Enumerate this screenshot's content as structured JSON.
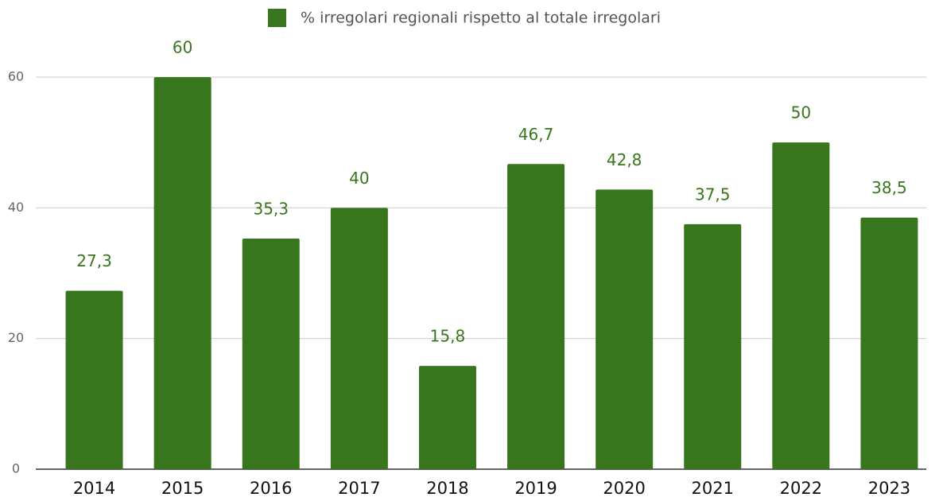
{
  "chart_data": {
    "type": "bar",
    "categories": [
      "2014",
      "2015",
      "2016",
      "2017",
      "2018",
      "2019",
      "2020",
      "2021",
      "2022",
      "2023"
    ],
    "series": [
      {
        "name": "% irregolari regionali rispetto al totale irregolari",
        "color": "#38761d",
        "values": [
          27.3,
          60,
          35.3,
          40,
          15.8,
          46.7,
          42.8,
          37.5,
          50,
          38.5
        ],
        "value_labels": [
          "27,3",
          "60",
          "35,3",
          "40",
          "15,8",
          "46,7",
          "42,8",
          "37,5",
          "50",
          "38,5"
        ]
      }
    ],
    "ylim": [
      0,
      60
    ],
    "yticks": [
      0,
      20,
      40,
      60
    ],
    "grid": true,
    "legend": "top"
  }
}
